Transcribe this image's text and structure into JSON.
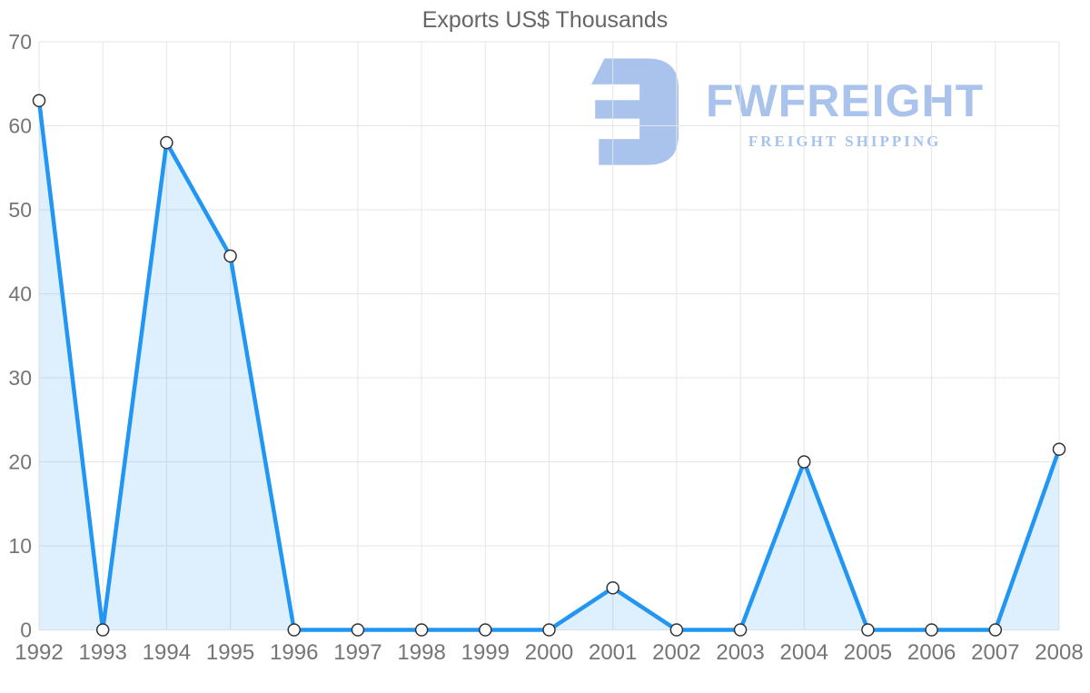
{
  "page": {
    "title": "Exports US$ Thousands"
  },
  "watermark": {
    "brand": "FWFREIGHT",
    "tagline": "FREIGHT SHIPPING",
    "icon": "fwfreight-logo-icon",
    "brand_color": "#a9c3ec",
    "tagline_color": "#a5c3ef"
  },
  "colors": {
    "line": "#2196f3",
    "area_fill": "rgba(33,150,243,0.15)",
    "grid": "#e5e5e5",
    "marker_fill": "#ffffff",
    "marker_stroke": "#333333",
    "axis_label": "#757575",
    "title": "#666666",
    "background": "#ffffff"
  },
  "chart_data": {
    "type": "area",
    "title": "Exports US$ Thousands",
    "x": [
      1992,
      1993,
      1994,
      1995,
      1996,
      1997,
      1998,
      1999,
      2000,
      2001,
      2002,
      2003,
      2004,
      2005,
      2006,
      2007,
      2008
    ],
    "values": [
      63,
      0,
      58,
      44.5,
      0,
      0,
      0,
      0,
      0,
      5,
      0,
      0,
      20,
      0,
      0,
      0,
      21.5
    ],
    "xlabel": "",
    "ylabel": "",
    "ylim": [
      0,
      70
    ],
    "ytick_step": 10,
    "yticks": [
      0,
      10,
      20,
      30,
      40,
      50,
      60,
      70
    ],
    "grid": true,
    "legend": false,
    "marker": "circle",
    "interpolation": "linear"
  }
}
